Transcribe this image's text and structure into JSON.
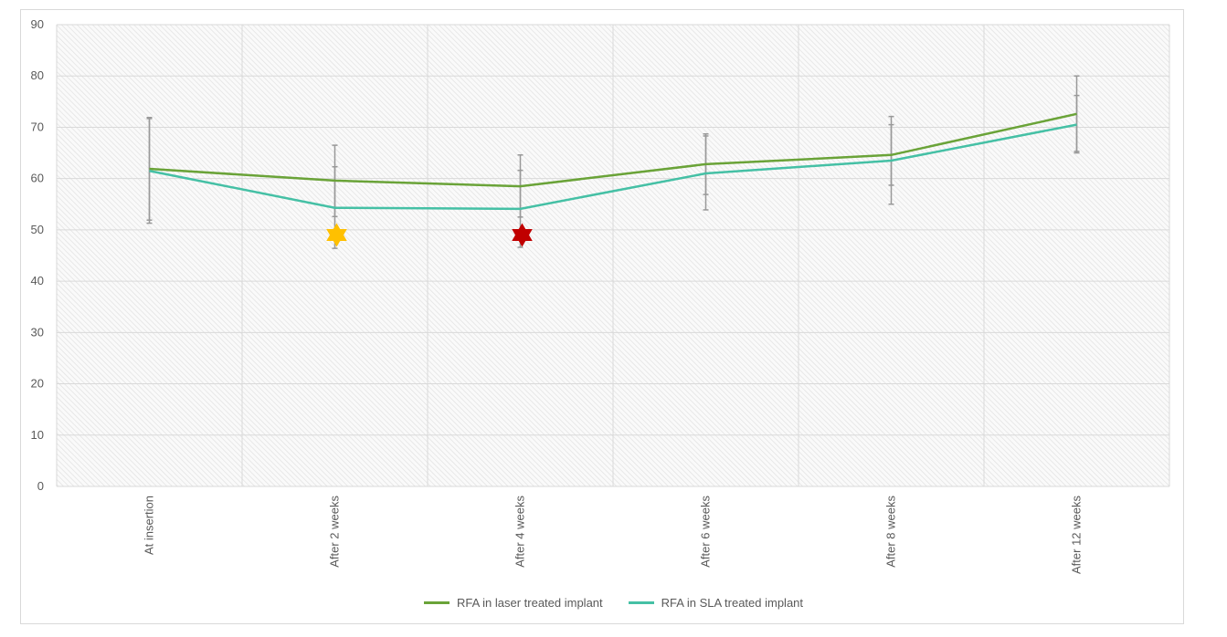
{
  "chart_data": {
    "type": "line",
    "categories": [
      "At insertion",
      "After 2 weeks",
      "After 4 weeks",
      "After 6 weeks",
      "After 8 weeks",
      "After 12 weeks"
    ],
    "ylim": [
      0,
      90
    ],
    "yticks": [
      0,
      10,
      20,
      30,
      40,
      50,
      60,
      70,
      80,
      90
    ],
    "grid": true,
    "legend_position": "bottom",
    "series": [
      {
        "name": "RFA in laser treated implant",
        "color": "#6aa338",
        "values": [
          61.9,
          59.6,
          58.5,
          62.8,
          64.6,
          72.6
        ],
        "error_low": [
          51.9,
          52.6,
          52.5,
          56.9,
          58.7,
          65.0
        ],
        "error_high": [
          71.9,
          66.5,
          64.6,
          68.7,
          72.1,
          80.0
        ]
      },
      {
        "name": "RFA in SLA treated implant",
        "color": "#45c0a5",
        "values": [
          61.5,
          54.3,
          54.1,
          61.0,
          63.5,
          70.5
        ],
        "error_low": [
          51.3,
          46.4,
          46.6,
          53.9,
          55.0,
          65.3
        ],
        "error_high": [
          71.7,
          62.3,
          61.6,
          68.3,
          70.5,
          76.2
        ]
      }
    ],
    "markers": [
      {
        "category": "After 2 weeks",
        "y": 49,
        "shape": "six-pointed-star",
        "color": "#ffc000"
      },
      {
        "category": "After 4 weeks",
        "y": 49,
        "shape": "six-pointed-star",
        "color": "#c00000"
      }
    ]
  }
}
